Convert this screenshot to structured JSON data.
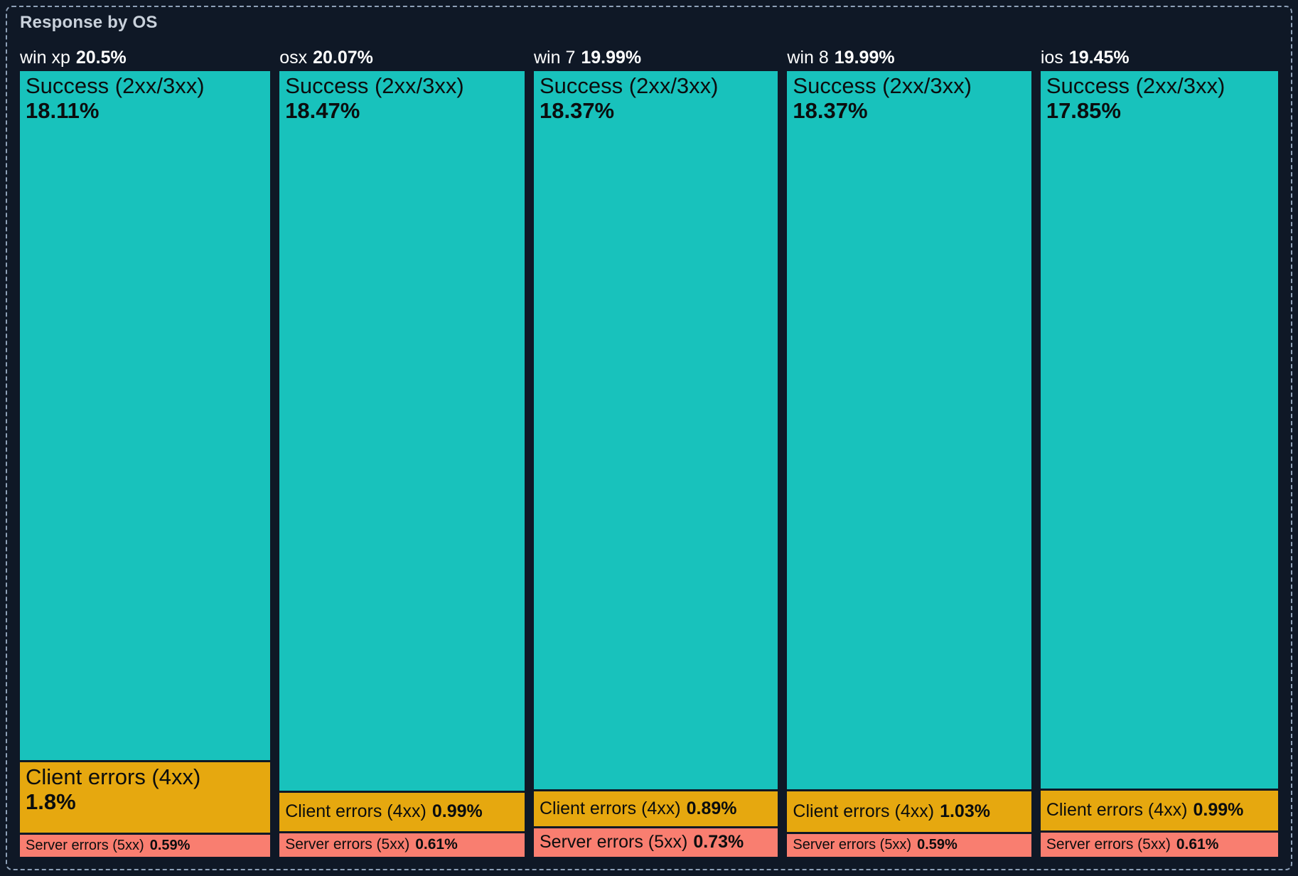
{
  "panel": {
    "title": "Response by OS"
  },
  "chart_data": {
    "type": "treemap",
    "variant": "marimekko-columns (column width proportional to OS share, tile height proportional to status share)",
    "title": "Response by OS",
    "units": "%",
    "grid": false,
    "legend": "none (labels drawn inside tiles)",
    "categories": [
      "win xp",
      "osx",
      "win 7",
      "win 8",
      "ios"
    ],
    "colors": {
      "success": "#18C2BC",
      "client": "#E6A80F",
      "server": "#F97E70"
    },
    "text_colors": {
      "title": "#C9D1DB",
      "column_header": "#FFFFFF",
      "tile_label": "#0B0D0E"
    },
    "background": "#0F1826",
    "columns": [
      {
        "name": "win xp",
        "total": 20.5,
        "total_label": "20.5%",
        "segments": [
          {
            "label": "Success (2xx/3xx)",
            "value": 18.11,
            "value_label": "18.11%",
            "color_key": "success"
          },
          {
            "label": "Client errors (4xx)",
            "value": 1.8,
            "value_label": "1.8%",
            "color_key": "client"
          },
          {
            "label": "Server errors (5xx)",
            "value": 0.59,
            "value_label": "0.59%",
            "color_key": "server"
          }
        ]
      },
      {
        "name": "osx",
        "total": 20.07,
        "total_label": "20.07%",
        "segments": [
          {
            "label": "Success (2xx/3xx)",
            "value": 18.47,
            "value_label": "18.47%",
            "color_key": "success"
          },
          {
            "label": "Client errors (4xx)",
            "value": 0.99,
            "value_label": "0.99%",
            "color_key": "client"
          },
          {
            "label": "Server errors (5xx)",
            "value": 0.61,
            "value_label": "0.61%",
            "color_key": "server"
          }
        ]
      },
      {
        "name": "win 7",
        "total": 19.99,
        "total_label": "19.99%",
        "segments": [
          {
            "label": "Success (2xx/3xx)",
            "value": 18.37,
            "value_label": "18.37%",
            "color_key": "success"
          },
          {
            "label": "Client errors (4xx)",
            "value": 0.89,
            "value_label": "0.89%",
            "color_key": "client"
          },
          {
            "label": "Server errors (5xx)",
            "value": 0.73,
            "value_label": "0.73%",
            "color_key": "server"
          }
        ]
      },
      {
        "name": "win 8",
        "total": 19.99,
        "total_label": "19.99%",
        "segments": [
          {
            "label": "Success (2xx/3xx)",
            "value": 18.37,
            "value_label": "18.37%",
            "color_key": "success"
          },
          {
            "label": "Client errors (4xx)",
            "value": 1.03,
            "value_label": "1.03%",
            "color_key": "client"
          },
          {
            "label": "Server errors (5xx)",
            "value": 0.59,
            "value_label": "0.59%",
            "color_key": "server"
          }
        ]
      },
      {
        "name": "ios",
        "total": 19.45,
        "total_label": "19.45%",
        "segments": [
          {
            "label": "Success (2xx/3xx)",
            "value": 17.85,
            "value_label": "17.85%",
            "color_key": "success"
          },
          {
            "label": "Client errors (4xx)",
            "value": 0.99,
            "value_label": "0.99%",
            "color_key": "client"
          },
          {
            "label": "Server errors (5xx)",
            "value": 0.61,
            "value_label": "0.61%",
            "color_key": "server"
          }
        ]
      }
    ]
  }
}
